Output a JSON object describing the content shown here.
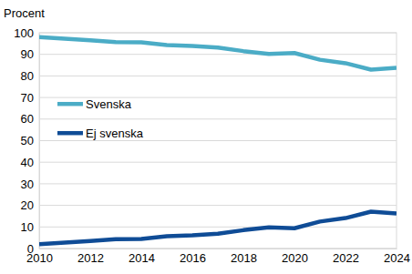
{
  "chart_data": {
    "type": "line",
    "y_label": "Procent",
    "x": [
      2010,
      2011,
      2012,
      2013,
      2014,
      2015,
      2016,
      2017,
      2018,
      2019,
      2020,
      2021,
      2022,
      2023,
      2024
    ],
    "series": [
      {
        "name": "Svenska",
        "color": "#4bacc6",
        "values": [
          98,
          97.3,
          96.5,
          95.7,
          95.6,
          94.3,
          93.9,
          93.1,
          91.5,
          90.2,
          90.6,
          87.5,
          85.9,
          82.9,
          83.8
        ]
      },
      {
        "name": "Ej svenska",
        "color": "#0f4c96",
        "values": [
          2,
          2.7,
          3.5,
          4.3,
          4.4,
          5.7,
          6.1,
          6.9,
          8.5,
          9.8,
          9.4,
          12.5,
          14.1,
          17.1,
          16.2
        ]
      }
    ],
    "xlim": [
      2010,
      2024
    ],
    "xticks": [
      2010,
      2012,
      2014,
      2016,
      2018,
      2020,
      2022,
      2024
    ],
    "ylim": [
      0,
      100
    ],
    "yticks": [
      0,
      10,
      20,
      30,
      40,
      50,
      60,
      70,
      80,
      90,
      100
    ],
    "grid": true,
    "legend": "left"
  }
}
